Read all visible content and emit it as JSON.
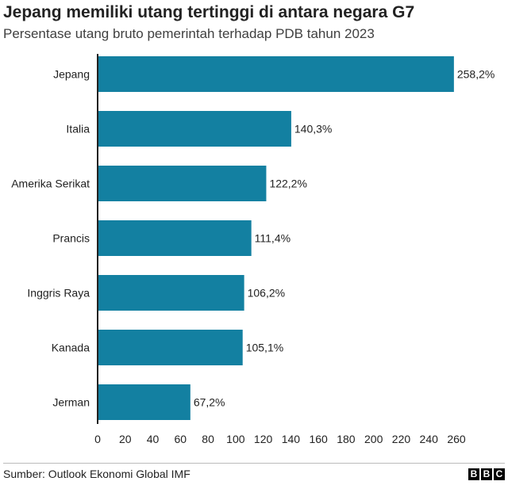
{
  "header": {
    "title": "Jepang memiliki utang tertinggi di antara negara G7",
    "subtitle": "Persentase utang bruto pemerintah terhadap PDB tahun 2023"
  },
  "footer": {
    "source": "Sumber: Outlook Ekonomi Global IMF",
    "logo_letters": [
      "B",
      "B",
      "C"
    ]
  },
  "chart_data": {
    "type": "bar",
    "orientation": "horizontal",
    "title": "Jepang memiliki utang tertinggi di antara negara G7",
    "subtitle": "Persentase utang bruto pemerintah terhadap PDB tahun 2023",
    "categories": [
      "Jepang",
      "Italia",
      "Amerika Serikat",
      "Prancis",
      "Inggris Raya",
      "Kanada",
      "Jerman"
    ],
    "values": [
      258.2,
      140.3,
      122.2,
      111.4,
      106.2,
      105.1,
      67.2
    ],
    "value_labels": [
      "258,2%",
      "140,3%",
      "122,2%",
      "111,4%",
      "106,2%",
      "105,1%",
      "67,2%"
    ],
    "xticks": [
      0,
      20,
      40,
      60,
      80,
      100,
      120,
      140,
      160,
      180,
      200,
      220,
      240,
      260
    ],
    "xlim": [
      0,
      260
    ],
    "grid": false,
    "bar_color": "#1380a1",
    "axis_color": "#222222"
  }
}
